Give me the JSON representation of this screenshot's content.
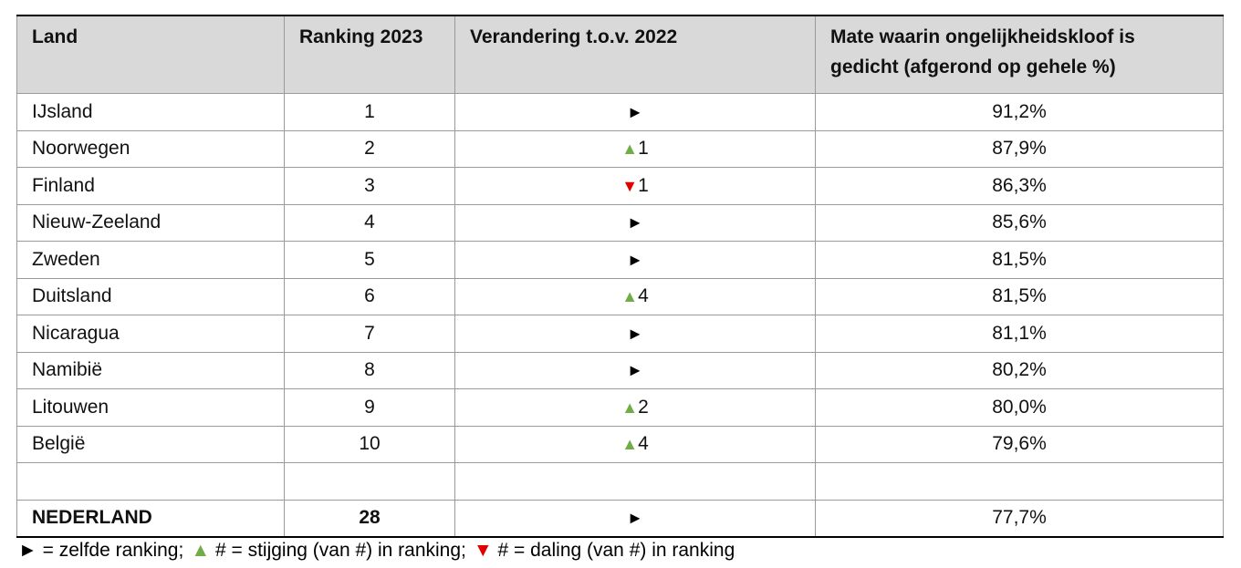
{
  "table": {
    "header": [
      "Land",
      "Ranking 2023",
      "Verandering t.o.v. 2022",
      "Mate waarin ongelijkheidskloof is gedicht (afgerond op gehele %)"
    ],
    "rows": [
      {
        "land": "IJsland",
        "rank": 1,
        "change": {
          "symbol": "►",
          "color": "#000000"
        },
        "score": "91,2%"
      },
      {
        "land": "Noorwegen",
        "rank": 2,
        "change": {
          "symbol": "▲",
          "color": "#70ad47",
          "amount": 1
        },
        "score": "87,9%"
      },
      {
        "land": "Finland",
        "rank": 3,
        "change": {
          "symbol": "▼",
          "color": "#e00000",
          "amount": 1
        },
        "score": "86,3%"
      },
      {
        "land": "Nieuw-Zeeland",
        "rank": 4,
        "change": {
          "symbol": "►",
          "color": "#000000"
        },
        "score": "85,6%"
      },
      {
        "land": "Zweden",
        "rank": 5,
        "change": {
          "symbol": "►",
          "color": "#000000"
        },
        "score": "81,5%"
      },
      {
        "land": "Duitsland",
        "rank": 6,
        "change": {
          "symbol": "▲",
          "color": "#70ad47",
          "amount": 4
        },
        "score": "81,5%"
      },
      {
        "land": "Nicaragua",
        "rank": 7,
        "change": {
          "symbol": "►",
          "color": "#000000"
        },
        "score": "81,1%"
      },
      {
        "land": "Namibië",
        "rank": 8,
        "change": {
          "symbol": "►",
          "color": "#000000"
        },
        "score": "80,2%"
      },
      {
        "land": "Litouwen",
        "rank": 9,
        "change": {
          "symbol": "▲",
          "color": "#70ad47",
          "amount": 2
        },
        "score": "80,0%"
      },
      {
        "land": "België",
        "rank": 10,
        "change": {
          "symbol": "▲",
          "color": "#70ad47",
          "amount": 4
        },
        "score": "79,6%"
      }
    ],
    "total": {
      "land": "NEDERLAND",
      "rank": 28,
      "change": {
        "symbol": "►",
        "color": "#000000"
      },
      "score": "77,7%"
    }
  },
  "legend": [
    {
      "symbol": "►",
      "color": "#000000",
      "text": "= zelfde ranking;"
    },
    {
      "symbol": "▲",
      "color": "#70ad47",
      "text": "# = stijging (van #) in ranking;"
    },
    {
      "symbol": "▼",
      "color": "#e00000",
      "text": "# = daling (van #) in ranking"
    }
  ]
}
